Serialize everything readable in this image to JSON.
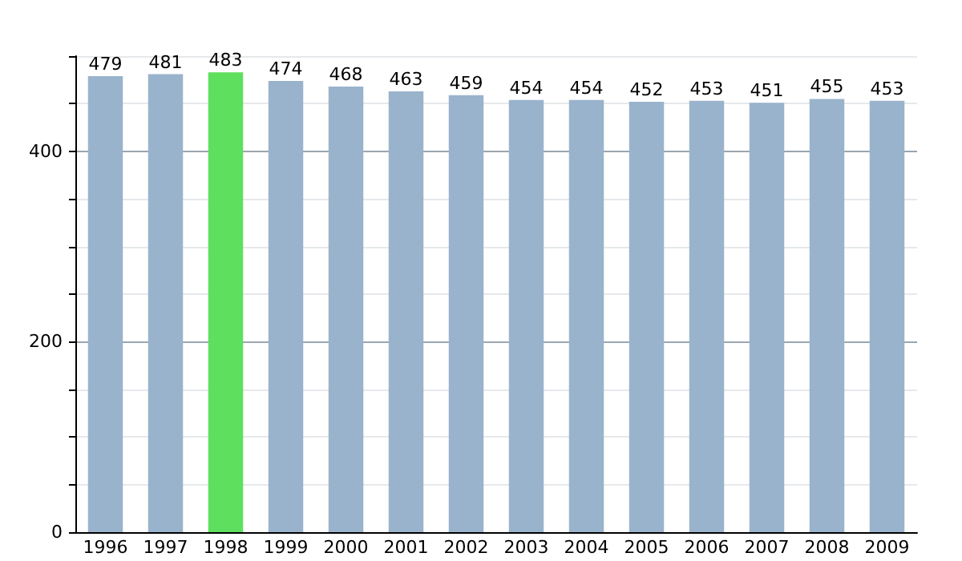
{
  "chart_data": {
    "type": "bar",
    "categories": [
      "1996",
      "1997",
      "1998",
      "1999",
      "2000",
      "2001",
      "2002",
      "2003",
      "2004",
      "2005",
      "2006",
      "2007",
      "2008",
      "2009"
    ],
    "values": [
      479,
      481,
      483,
      474,
      468,
      463,
      459,
      454,
      454,
      452,
      453,
      451,
      455,
      453
    ],
    "colors": [
      "#9ab3cc",
      "#9ab3cc",
      "#5ee05e",
      "#9ab3cc",
      "#9ab3cc",
      "#9ab3cc",
      "#9ab3cc",
      "#9ab3cc",
      "#9ab3cc",
      "#9ab3cc",
      "#9ab3cc",
      "#9ab3cc",
      "#9ab3cc",
      "#9ab3cc"
    ],
    "ylim": [
      0,
      500
    ],
    "yticks": [
      0,
      {
        "value": 50,
        "label": null
      },
      {
        "value": 100,
        "label": null
      },
      {
        "value": 150,
        "label": null
      },
      200,
      {
        "value": 250,
        "label": null
      },
      {
        "value": 300,
        "label": null
      },
      {
        "value": 350,
        "label": null
      },
      400,
      {
        "value": 450,
        "label": null
      },
      {
        "value": 500,
        "label": null
      }
    ],
    "grid": "y",
    "data_labels": true
  }
}
